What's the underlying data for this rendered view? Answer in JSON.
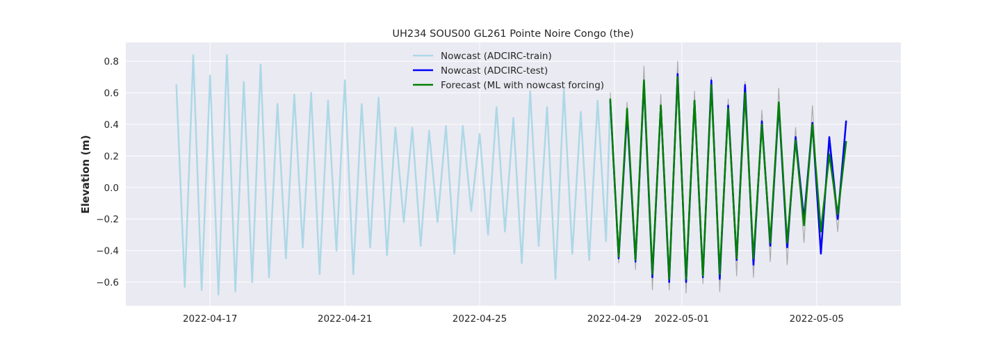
{
  "chart_data": {
    "type": "line",
    "title": "UH234 SOUS00 GL261 Pointe Noire Congo (the)",
    "xlabel": "",
    "ylabel": "Elevation (m)",
    "x_axis_type": "date",
    "xlim": [
      "2022-04-14T12:00",
      "2022-05-07T12:00"
    ],
    "ylim": [
      -0.75,
      0.92
    ],
    "x_ticks": [
      "2022-04-17",
      "2022-04-21",
      "2022-04-25",
      "2022-04-29",
      "2022-05-01",
      "2022-05-05"
    ],
    "y_ticks": [
      -0.6,
      -0.4,
      -0.2,
      0.0,
      0.2,
      0.4,
      0.6,
      0.8
    ],
    "y_tick_labels": [
      "−0.6",
      "−0.4",
      "−0.2",
      "0.0",
      "0.2",
      "0.4",
      "0.6",
      "0.8"
    ],
    "grid": true,
    "legend_position": "top-center",
    "background_color": "#eaeaf2",
    "series": [
      {
        "name": "Nowcast (ADCIRC-train)",
        "color": "#add8e6",
        "x": [
          "2022-04-16T00:00",
          "2022-04-16T06:00",
          "2022-04-16T12:00",
          "2022-04-16T18:00",
          "2022-04-17T00:00",
          "2022-04-17T06:00",
          "2022-04-17T12:00",
          "2022-04-17T18:00",
          "2022-04-18T00:00",
          "2022-04-18T06:00",
          "2022-04-18T12:00",
          "2022-04-18T18:00",
          "2022-04-19T00:00",
          "2022-04-19T06:00",
          "2022-04-19T12:00",
          "2022-04-19T18:00",
          "2022-04-20T00:00",
          "2022-04-20T06:00",
          "2022-04-20T12:00",
          "2022-04-20T18:00",
          "2022-04-21T00:00",
          "2022-04-21T06:00",
          "2022-04-21T12:00",
          "2022-04-21T18:00",
          "2022-04-22T00:00",
          "2022-04-22T06:00",
          "2022-04-22T12:00",
          "2022-04-22T18:00",
          "2022-04-23T00:00",
          "2022-04-23T06:00",
          "2022-04-23T12:00",
          "2022-04-23T18:00",
          "2022-04-24T00:00",
          "2022-04-24T06:00",
          "2022-04-24T12:00",
          "2022-04-24T18:00",
          "2022-04-25T00:00",
          "2022-04-25T06:00",
          "2022-04-25T12:00",
          "2022-04-25T18:00",
          "2022-04-26T00:00",
          "2022-04-26T06:00",
          "2022-04-26T12:00",
          "2022-04-26T18:00",
          "2022-04-27T00:00",
          "2022-04-27T06:00",
          "2022-04-27T12:00",
          "2022-04-27T18:00",
          "2022-04-28T00:00",
          "2022-04-28T06:00",
          "2022-04-28T12:00",
          "2022-04-28T18:00",
          "2022-04-28T21:00"
        ],
        "values": [
          0.65,
          -0.63,
          0.84,
          -0.65,
          0.71,
          -0.68,
          0.84,
          -0.66,
          0.67,
          -0.6,
          0.78,
          -0.57,
          0.53,
          -0.45,
          0.59,
          -0.38,
          0.6,
          -0.55,
          0.55,
          -0.4,
          0.68,
          -0.55,
          0.53,
          -0.38,
          0.57,
          -0.43,
          0.38,
          -0.22,
          0.38,
          -0.37,
          0.36,
          -0.22,
          0.39,
          -0.42,
          0.39,
          -0.15,
          0.34,
          -0.3,
          0.51,
          -0.28,
          0.44,
          -0.48,
          0.61,
          -0.37,
          0.51,
          -0.58,
          0.62,
          -0.42,
          0.48,
          -0.46,
          0.55,
          -0.34,
          0.56
        ]
      },
      {
        "name": "Nowcast (ADCIRC-test)",
        "color": "#0000ff",
        "x": [
          "2022-04-28T21:00",
          "2022-04-29T03:00",
          "2022-04-29T09:00",
          "2022-04-29T15:00",
          "2022-04-29T21:00",
          "2022-04-30T03:00",
          "2022-04-30T09:00",
          "2022-04-30T15:00",
          "2022-04-30T21:00",
          "2022-05-01T03:00",
          "2022-05-01T09:00",
          "2022-05-01T15:00",
          "2022-05-01T21:00",
          "2022-05-02T03:00",
          "2022-05-02T09:00",
          "2022-05-02T15:00",
          "2022-05-02T21:00",
          "2022-05-03T03:00",
          "2022-05-03T09:00",
          "2022-05-03T15:00",
          "2022-05-03T21:00",
          "2022-05-04T03:00",
          "2022-05-04T09:00",
          "2022-05-04T15:00",
          "2022-05-04T21:00",
          "2022-05-05T03:00",
          "2022-05-05T09:00",
          "2022-05-05T15:00",
          "2022-05-05T21:00"
        ],
        "values": [
          0.55,
          -0.45,
          0.47,
          -0.47,
          0.66,
          -0.57,
          0.52,
          -0.6,
          0.72,
          -0.6,
          0.55,
          -0.57,
          0.68,
          -0.58,
          0.52,
          -0.46,
          0.65,
          -0.49,
          0.42,
          -0.37,
          0.52,
          -0.38,
          0.32,
          -0.2,
          0.41,
          -0.42,
          0.32,
          -0.2,
          0.42
        ]
      },
      {
        "name": "Forecast (ML with nowcast forcing)",
        "color": "#008000",
        "x": [
          "2022-04-28T21:00",
          "2022-04-29T03:00",
          "2022-04-29T09:00",
          "2022-04-29T15:00",
          "2022-04-29T21:00",
          "2022-04-30T03:00",
          "2022-04-30T09:00",
          "2022-04-30T15:00",
          "2022-04-30T21:00",
          "2022-05-01T03:00",
          "2022-05-01T09:00",
          "2022-05-01T15:00",
          "2022-05-01T21:00",
          "2022-05-02T03:00",
          "2022-05-02T09:00",
          "2022-05-02T15:00",
          "2022-05-02T21:00",
          "2022-05-03T03:00",
          "2022-05-03T09:00",
          "2022-05-03T15:00",
          "2022-05-03T21:00",
          "2022-05-04T03:00",
          "2022-05-04T09:00",
          "2022-05-04T15:00",
          "2022-05-04T21:00",
          "2022-05-05T03:00",
          "2022-05-05T09:00",
          "2022-05-05T15:00",
          "2022-05-05T21:00"
        ],
        "values": [
          0.56,
          -0.44,
          0.5,
          -0.46,
          0.68,
          -0.55,
          0.52,
          -0.58,
          0.7,
          -0.58,
          0.55,
          -0.56,
          0.65,
          -0.55,
          0.5,
          -0.45,
          0.6,
          -0.45,
          0.4,
          -0.35,
          0.54,
          -0.35,
          0.3,
          -0.24,
          0.4,
          -0.28,
          0.21,
          -0.17,
          0.29
        ]
      },
      {
        "name": "",
        "color": "#aaaaaa",
        "x": [
          "2022-04-28T21:00",
          "2022-04-29T03:00",
          "2022-04-29T09:00",
          "2022-04-29T15:00",
          "2022-04-29T21:00",
          "2022-04-30T03:00",
          "2022-04-30T09:00",
          "2022-04-30T15:00",
          "2022-04-30T21:00",
          "2022-05-01T03:00",
          "2022-05-01T09:00",
          "2022-05-01T15:00",
          "2022-05-01T21:00",
          "2022-05-02T03:00",
          "2022-05-02T09:00",
          "2022-05-02T15:00",
          "2022-05-02T21:00",
          "2022-05-03T03:00",
          "2022-05-03T09:00",
          "2022-05-03T15:00",
          "2022-05-03T21:00",
          "2022-05-04T03:00",
          "2022-05-04T09:00",
          "2022-05-04T15:00",
          "2022-05-04T21:00",
          "2022-05-05T03:00",
          "2022-05-05T09:00",
          "2022-05-05T15:00",
          "2022-05-05T21:00"
        ],
        "values": [
          0.6,
          -0.48,
          0.54,
          -0.52,
          0.77,
          -0.65,
          0.59,
          -0.65,
          0.8,
          -0.67,
          0.61,
          -0.61,
          0.7,
          -0.66,
          0.56,
          -0.56,
          0.67,
          -0.57,
          0.49,
          -0.47,
          0.63,
          -0.49,
          0.38,
          -0.35,
          0.52,
          -0.38,
          0.27,
          -0.28,
          0.4
        ]
      }
    ]
  }
}
